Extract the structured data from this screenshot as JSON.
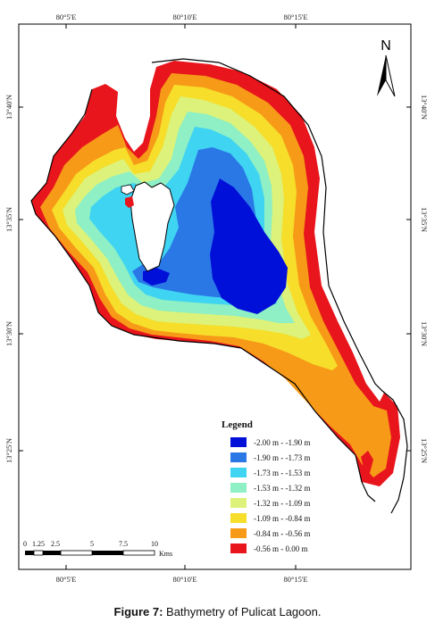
{
  "figure": {
    "caption_label": "Figure 7:",
    "caption_text": " Bathymetry of Pulicat Lagoon."
  },
  "map": {
    "north_label": "N",
    "top_ticks": [
      "80°5'E",
      "80°10'E",
      "80°15'E"
    ],
    "bottom_ticks": [
      "80°5'E",
      "80°10'E",
      "80°15'E"
    ],
    "left_ticks": [
      "13°40'N",
      "13°35'N",
      "13°30'N",
      "13°25'N"
    ],
    "right_ticks": [
      "13°40'N",
      "13°35'N",
      "13°30'N",
      "13°25'N"
    ],
    "scale_bar": {
      "labels": [
        "0",
        "1.25",
        "2.5",
        "5",
        "7.5",
        "10"
      ],
      "unit": "Kms"
    }
  },
  "legend": {
    "title": "Legend",
    "items": [
      {
        "label": "-2.00 m - -1.90 m",
        "color": "#0010d8"
      },
      {
        "label": "-1.90 m - -1.73 m",
        "color": "#2a78e6"
      },
      {
        "label": "-1.73 m - -1.53 m",
        "color": "#3fd4f2"
      },
      {
        "label": "-1.53 m - -1.32 m",
        "color": "#8ef0c4"
      },
      {
        "label": "-1.32 m - -1.09 m",
        "color": "#dcf27a"
      },
      {
        "label": "-1.09 m - -0.84 m",
        "color": "#f6de2a"
      },
      {
        "label": "-0.84 m - -0.56 m",
        "color": "#f79a18"
      },
      {
        "label": "-0.56 m - 0.00 m",
        "color": "#e8151c"
      }
    ]
  }
}
